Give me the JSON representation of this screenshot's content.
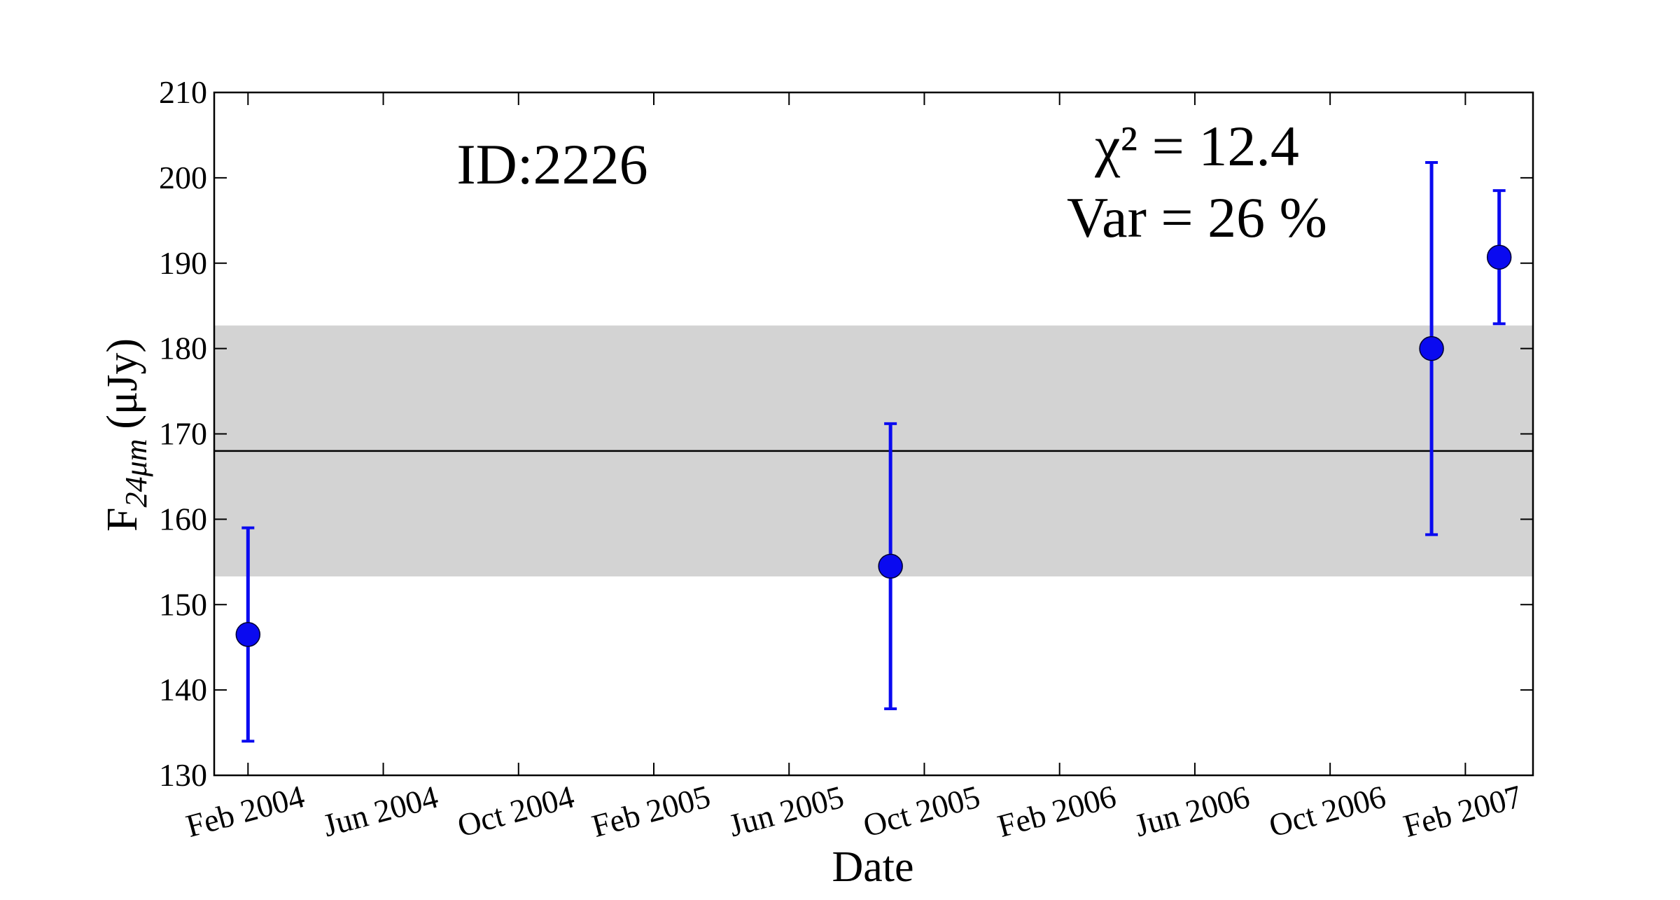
{
  "chart_data": {
    "type": "errorbar",
    "xlabel": "Date",
    "ylabel": {
      "main": "F",
      "sub": "24μm",
      "unit": "(μJy)"
    },
    "annotations": [
      "ID:2226",
      "χ² = 12.4",
      "Var = 26 %"
    ],
    "x": [
      "2004-02",
      "2005-09",
      "2007-01",
      "2007-03"
    ],
    "series": [
      {
        "color": "#0a0af0",
        "values": [
          146.5,
          154.5,
          180,
          190.7
        ],
        "errors": [
          12.5,
          16.7,
          21.8,
          7.8
        ]
      }
    ],
    "mean": 168,
    "band": [
      153.3,
      182.7
    ],
    "band_color": "#d3d3d3",
    "xlim": [
      "2004-01",
      "2007-04"
    ],
    "xticks": [
      {
        "value": "2004-02",
        "label": "Feb 2004"
      },
      {
        "value": "2004-06",
        "label": "Jun 2004"
      },
      {
        "value": "2004-10",
        "label": "Oct 2004"
      },
      {
        "value": "2005-02",
        "label": "Feb 2005"
      },
      {
        "value": "2005-06",
        "label": "Jun 2005"
      },
      {
        "value": "2005-10",
        "label": "Oct 2005"
      },
      {
        "value": "2006-02",
        "label": "Feb 2006"
      },
      {
        "value": "2006-06",
        "label": "Jun 2006"
      },
      {
        "value": "2006-10",
        "label": "Oct 2006"
      },
      {
        "value": "2007-02",
        "label": "Feb 2007"
      }
    ],
    "ylim": [
      130,
      210
    ],
    "yticks": [
      130,
      140,
      150,
      160,
      170,
      180,
      190,
      200,
      210
    ]
  }
}
